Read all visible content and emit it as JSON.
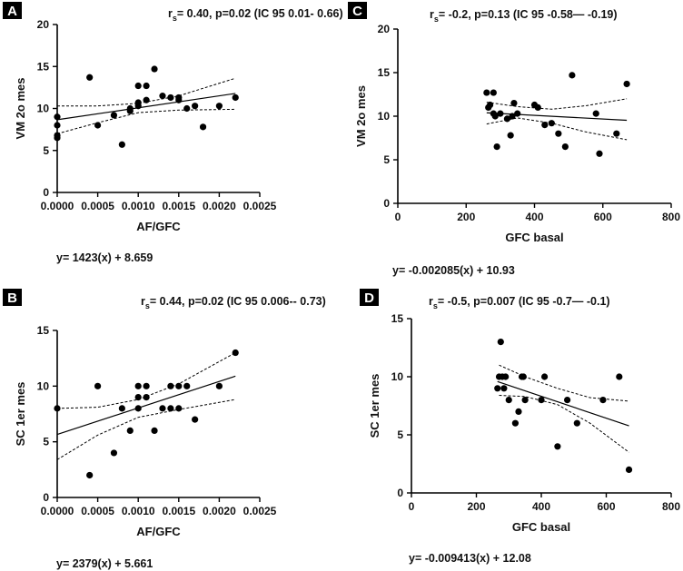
{
  "chart_data": [
    {
      "panel": "A",
      "type": "scatter",
      "stats": "= 0.40, p=0.02 (IC 95 0.01- 0.66)",
      "xlabel": "AF/GFC",
      "ylabel": "VM  2o mes",
      "xlim": [
        0,
        0.0025
      ],
      "ylim": [
        0,
        20
      ],
      "xticks": [
        "0.0000",
        "0.0005",
        "0.0010",
        "0.0015",
        "0.0020",
        "0.0025"
      ],
      "yticks": [
        "0",
        "5",
        "10",
        "15",
        "20"
      ],
      "equation": "y= 1423(x) + 8.659",
      "fit": {
        "slope": 1423,
        "intercept": 8.659
      },
      "ci_upper": [
        [
          0,
          10.3
        ],
        [
          0.0005,
          10.3
        ],
        [
          0.001,
          10.6
        ],
        [
          0.0015,
          11.5
        ],
        [
          0.0022,
          13.6
        ]
      ],
      "ci_lower": [
        [
          0,
          7.0
        ],
        [
          0.0005,
          8.3
        ],
        [
          0.001,
          9.5
        ],
        [
          0.0015,
          9.8
        ],
        [
          0.0022,
          9.9
        ]
      ],
      "x": [
        0,
        0,
        0,
        0,
        0.0004,
        0.0005,
        0.0007,
        0.0008,
        0.0009,
        0.0009,
        0.001,
        0.001,
        0.001,
        0.0011,
        0.0011,
        0.0012,
        0.0013,
        0.0014,
        0.0015,
        0.0015,
        0.0016,
        0.0017,
        0.0018,
        0.002,
        0.0022
      ],
      "y": [
        6.5,
        6.8,
        8.0,
        9.0,
        13.7,
        8.0,
        9.2,
        5.7,
        9.7,
        10.0,
        10.3,
        10.7,
        12.7,
        11.0,
        12.7,
        14.7,
        11.5,
        11.3,
        11.0,
        11.3,
        10.0,
        10.3,
        7.8,
        10.3,
        11.3
      ]
    },
    {
      "panel": "C",
      "type": "scatter",
      "stats": "= -0.2, p=0.13 (IC 95 -0.58— -0.19)",
      "xlabel": "GFC basal",
      "ylabel": "VM 2o mes",
      "xlim": [
        0,
        800
      ],
      "ylim": [
        0,
        20
      ],
      "xticks": [
        "0",
        "200",
        "400",
        "600",
        "800"
      ],
      "yticks": [
        "0",
        "5",
        "10",
        "15",
        "20"
      ],
      "equation": "y= -0.002085(x) + 10.93",
      "fit": {
        "slope": -0.002085,
        "intercept": 10.93
      },
      "ci_upper": [
        [
          260,
          11.6
        ],
        [
          350,
          11.1
        ],
        [
          450,
          10.8
        ],
        [
          550,
          11.2
        ],
        [
          670,
          12.0
        ]
      ],
      "ci_lower": [
        [
          260,
          9.1
        ],
        [
          350,
          9.8
        ],
        [
          450,
          9.2
        ],
        [
          550,
          8.2
        ],
        [
          670,
          7.3
        ]
      ],
      "x": [
        260,
        265,
        270,
        280,
        280,
        285,
        290,
        300,
        320,
        330,
        335,
        340,
        350,
        400,
        410,
        430,
        450,
        470,
        490,
        510,
        580,
        590,
        640,
        670
      ],
      "y": [
        12.7,
        11.0,
        11.3,
        10.3,
        12.7,
        10.0,
        6.5,
        10.3,
        9.7,
        7.8,
        10.0,
        11.5,
        10.3,
        11.3,
        11.0,
        9.0,
        9.2,
        8.0,
        6.5,
        14.7,
        10.3,
        5.7,
        8.0,
        13.7
      ]
    },
    {
      "panel": "B",
      "type": "scatter",
      "stats": "= 0.44, p=0.02 (IC 95 0.006-- 0.73)",
      "xlabel": "AF/GFC",
      "ylabel": "SC 1er mes",
      "xlim": [
        0,
        0.0025
      ],
      "ylim": [
        0,
        15
      ],
      "xticks": [
        "0.0000",
        "0.0005",
        "0.0010",
        "0.0015",
        "0.0020",
        "0.0025"
      ],
      "yticks": [
        "0",
        "5",
        "10",
        "15"
      ],
      "equation": "y= 2379(x) + 5.661",
      "fit": {
        "slope": 2379,
        "intercept": 5.661
      },
      "ci_upper": [
        [
          0,
          8.0
        ],
        [
          0.0005,
          8.1
        ],
        [
          0.001,
          8.8
        ],
        [
          0.0015,
          10.2
        ],
        [
          0.0022,
          13.0
        ]
      ],
      "ci_lower": [
        [
          0,
          3.4
        ],
        [
          0.0005,
          5.6
        ],
        [
          0.001,
          7.2
        ],
        [
          0.0015,
          7.9
        ],
        [
          0.0022,
          8.8
        ]
      ],
      "x": [
        0,
        0.0004,
        0.0005,
        0.0007,
        0.0008,
        0.0009,
        0.001,
        0.001,
        0.001,
        0.0011,
        0.0011,
        0.0012,
        0.0013,
        0.0014,
        0.0014,
        0.0015,
        0.0015,
        0.0016,
        0.0017,
        0.002,
        0.0022
      ],
      "y": [
        8,
        2,
        10,
        4,
        8,
        6,
        8,
        9,
        10,
        9,
        10,
        6,
        8,
        10,
        8,
        10,
        8,
        10,
        7,
        10,
        13
      ]
    },
    {
      "panel": "D",
      "type": "scatter",
      "stats": "= -0.5, p=0.007 (IC 95 -0.7— -0.1)",
      "xlabel": "GFC basal",
      "ylabel": "SC 1er mes",
      "xlim": [
        0,
        800
      ],
      "ylim": [
        0,
        15
      ],
      "xticks": [
        "0",
        "200",
        "400",
        "600",
        "800"
      ],
      "yticks": [
        "0",
        "5",
        "10",
        "15"
      ],
      "equation": "y= -0.009413(x) + 12.08",
      "fit": {
        "slope": -0.009413,
        "intercept": 12.08
      },
      "ci_upper": [
        [
          270,
          11.0
        ],
        [
          350,
          10.0
        ],
        [
          450,
          9.0
        ],
        [
          550,
          8.2
        ],
        [
          670,
          7.9
        ]
      ],
      "ci_lower": [
        [
          270,
          8.4
        ],
        [
          350,
          8.3
        ],
        [
          450,
          7.6
        ],
        [
          550,
          6.0
        ],
        [
          670,
          3.5
        ]
      ],
      "x": [
        265,
        270,
        275,
        280,
        285,
        290,
        300,
        320,
        330,
        340,
        345,
        350,
        400,
        410,
        450,
        480,
        510,
        590,
        640,
        670
      ],
      "y": [
        9,
        10,
        13,
        10,
        9,
        10,
        8,
        6,
        7,
        10,
        10,
        8,
        8,
        10,
        4,
        8,
        6,
        8,
        10,
        2
      ]
    }
  ],
  "panels": {
    "A": {
      "label": "A"
    },
    "B": {
      "label": "B"
    },
    "C": {
      "label": "C"
    },
    "D": {
      "label": "D"
    }
  },
  "stat_prefix": "r",
  "stat_subscript": "s"
}
